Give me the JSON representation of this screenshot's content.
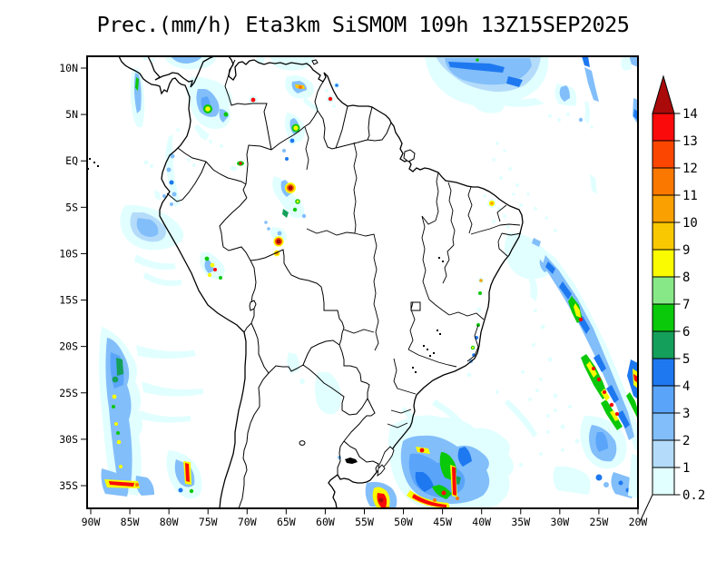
{
  "title": "Prec.(mm/h) Eta3km SiSMOM 109h 13Z15SEP2025",
  "axes": {
    "lat_labels": [
      "10N",
      "5N",
      "EQ",
      "5S",
      "10S",
      "15S",
      "20S",
      "25S",
      "30S",
      "35S"
    ],
    "lon_labels": [
      "90W",
      "85W",
      "80W",
      "75W",
      "70W",
      "65W",
      "60W",
      "55W",
      "50W",
      "45W",
      "40W",
      "35W",
      "30W",
      "25W",
      "20W"
    ]
  },
  "colorbar": {
    "levels": [
      "0.2",
      "1",
      "2",
      "3",
      "4",
      "5",
      "6",
      "7",
      "8",
      "9",
      "10",
      "11",
      "12",
      "13",
      "14"
    ],
    "colors": [
      "#E1FFFF",
      "#B4DCFA",
      "#82BEFA",
      "#5AA5FA",
      "#1E78F0",
      "#14A05A",
      "#0AC80A",
      "#87E887",
      "#FAFA00",
      "#FAC800",
      "#FAA000",
      "#FA7800",
      "#FA4600",
      "#FA0A0A"
    ],
    "above_color": "#AA0A0A"
  }
}
